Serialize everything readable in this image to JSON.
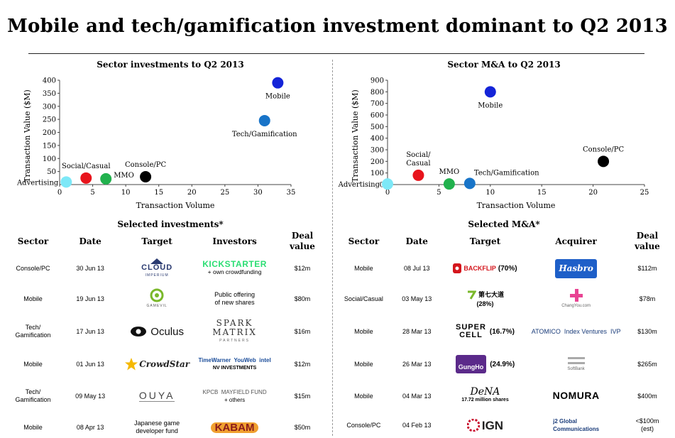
{
  "title": "Mobile and tech/gamification investment dominant to Q2 2013",
  "chart_data": [
    {
      "type": "scatter",
      "title": "Sector investments to Q2 2013",
      "xlabel": "Transaction Volume",
      "ylabel": "Transaction Value ($M)",
      "xlim": [
        0,
        35
      ],
      "ylim": [
        0,
        400
      ],
      "xticks": [
        0,
        5,
        10,
        15,
        20,
        25,
        30,
        35
      ],
      "yticks": [
        50,
        100,
        150,
        200,
        250,
        300,
        350,
        400
      ],
      "grid": false,
      "points": [
        {
          "label": "Advertising",
          "x": 1,
          "y": 10,
          "color": "#7de8f7",
          "label_pos": "left"
        },
        {
          "label": "Social/Casual",
          "x": 4,
          "y": 25,
          "color": "#e8141c",
          "label_pos": "above"
        },
        {
          "label": "MMO",
          "x": 7,
          "y": 22,
          "color": "#21b14d",
          "label_pos": "right"
        },
        {
          "label": "Console/PC",
          "x": 13,
          "y": 30,
          "color": "#000000",
          "label_pos": "above"
        },
        {
          "label": "Tech/Gamification",
          "x": 31,
          "y": 245,
          "color": "#1874c8",
          "label_pos": "below"
        },
        {
          "label": "Mobile",
          "x": 33,
          "y": 390,
          "color": "#1424d8",
          "label_pos": "below"
        }
      ]
    },
    {
      "type": "scatter",
      "title": "Sector M&A to Q2 2013",
      "xlabel": "Transaction Volume",
      "ylabel": "Transaction Value ($M)",
      "xlim": [
        0,
        25
      ],
      "ylim": [
        0,
        900
      ],
      "xticks": [
        0,
        5,
        10,
        15,
        20,
        25
      ],
      "yticks": [
        0,
        100,
        200,
        300,
        400,
        500,
        600,
        700,
        800,
        900
      ],
      "grid": false,
      "points": [
        {
          "label": "Advertising",
          "x": 0,
          "y": 5,
          "color": "#7de8f7",
          "label_pos": "left"
        },
        {
          "label": "Social/\nCasual",
          "x": 3,
          "y": 80,
          "color": "#e8141c",
          "label_pos": "above"
        },
        {
          "label": "MMO",
          "x": 6,
          "y": 5,
          "color": "#21b14d",
          "label_pos": "above"
        },
        {
          "label": "Tech/Gamification",
          "x": 8,
          "y": 10,
          "color": "#1874c8",
          "label_pos": "above-right"
        },
        {
          "label": "Mobile",
          "x": 10,
          "y": 800,
          "color": "#1424d8",
          "label_pos": "below"
        },
        {
          "label": "Console/PC",
          "x": 21,
          "y": 200,
          "color": "#000000",
          "label_pos": "above"
        }
      ]
    }
  ],
  "investments": {
    "title": "Selected investments*",
    "headers": {
      "sector": "Sector",
      "date": "Date",
      "target": "Target",
      "investors": "Investors",
      "deal": "Deal\nvalue"
    },
    "rows": [
      {
        "sector": "Console/PC",
        "date": "30 Jun 13",
        "target": "CLOUD",
        "target_sub": "IMPERIUM",
        "investors": "KICKSTARTER",
        "investors_note": "+ own crowdfunding",
        "value": "$12m"
      },
      {
        "sector": "Mobile",
        "date": "19 Jun 13",
        "target": "GAMEVIL",
        "target_sub": "",
        "investors": "Public offering\nof new shares",
        "investors_note": "",
        "value": "$80m"
      },
      {
        "sector": "Tech/\nGamification",
        "date": "17 Jun 13",
        "target": "Oculus",
        "target_sub": "",
        "investors": "SPARK\nMATRIX",
        "investors_note": "PARTNERS",
        "value": "$16m"
      },
      {
        "sector": "Mobile",
        "date": "01 Jun 13",
        "target": "CrowdStar",
        "target_sub": "",
        "investors": "TimeWarner  YouWeb  intel",
        "investors_note": "NV INVESTMENTS",
        "value": "$12m"
      },
      {
        "sector": "Tech/\nGamification",
        "date": "09 May 13",
        "target": "OUYA",
        "target_sub": "",
        "investors": "KPCB  MAYFIELD FUND",
        "investors_note": "+ others",
        "value": "$15m"
      },
      {
        "sector": "Mobile",
        "date": "08 Apr 13",
        "target": "Japanese game\ndeveloper fund",
        "target_sub": "",
        "investors": "KABAM",
        "investors_note": "",
        "value": "$50m"
      }
    ]
  },
  "ma": {
    "title": "Selected M&A*",
    "headers": {
      "sector": "Sector",
      "date": "Date",
      "target": "Target",
      "acquirer": "Acquirer",
      "deal": "Deal\nvalue"
    },
    "rows": [
      {
        "sector": "Mobile",
        "date": "08 Jul 13",
        "target": "BACKFLIP",
        "target_share": "(70%)",
        "acquirer": "Hasbro",
        "acquirer_sub": "",
        "value": "$112m"
      },
      {
        "sector": "Social/Casual",
        "date": "03 May 13",
        "target": "第七大道",
        "target_share": "(28%)",
        "acquirer": "ChangYou.com",
        "acquirer_sub": "",
        "value": "$78m"
      },
      {
        "sector": "Mobile",
        "date": "28 Mar 13",
        "target": "SUPER\nCELL",
        "target_share": "(16.7%)",
        "acquirer": "ATOMICO  Index Ventures  IVP",
        "acquirer_sub": "",
        "value": "$130m"
      },
      {
        "sector": "Mobile",
        "date": "26 Mar 13",
        "target": "GungHo",
        "target_share": "(24.9%)",
        "acquirer": "SoftBank",
        "acquirer_sub": "",
        "value": "$265m"
      },
      {
        "sector": "Mobile",
        "date": "04 Mar 13",
        "target": "DeNA",
        "target_share": "17.72 million shares",
        "acquirer": "NOMURA",
        "acquirer_sub": "",
        "value": "$400m"
      },
      {
        "sector": "Console/PC",
        "date": "04 Feb 13",
        "target": "IGN",
        "target_share": "",
        "acquirer": "j2 Global\nCommunications",
        "acquirer_sub": "",
        "value": "<$100m\n(est)"
      }
    ]
  },
  "colors": {
    "accent_red": "#e8141c",
    "kickstarter_green": "#2bde73",
    "hasbro_blue": "#1e5fc8",
    "kabam_orange": "#e8902a"
  }
}
